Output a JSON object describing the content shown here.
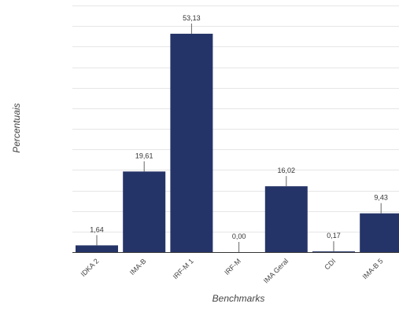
{
  "chart_data": {
    "type": "bar",
    "title": "",
    "xlabel": "Benchmarks",
    "ylabel": "Percentuais",
    "categories": [
      "IDKA 2",
      "IMA-B",
      "IRF-M 1",
      "IRF-M",
      "IMA Geral",
      "CDI",
      "IMA-B 5"
    ],
    "values": [
      1.64,
      19.61,
      53.13,
      0.0,
      16.02,
      0.17,
      9.43
    ],
    "value_labels": [
      "1,64",
      "19,61",
      "53,13",
      "0,00",
      "16,02",
      "0,17",
      "9,43"
    ],
    "ylim": [
      0,
      60
    ],
    "grid": true,
    "y_tick_labels_visible": false,
    "legend": "none"
  },
  "colors": {
    "bar": "#253468",
    "grid": "#e6e6e6",
    "axis": "#333333",
    "text": "#444444"
  }
}
